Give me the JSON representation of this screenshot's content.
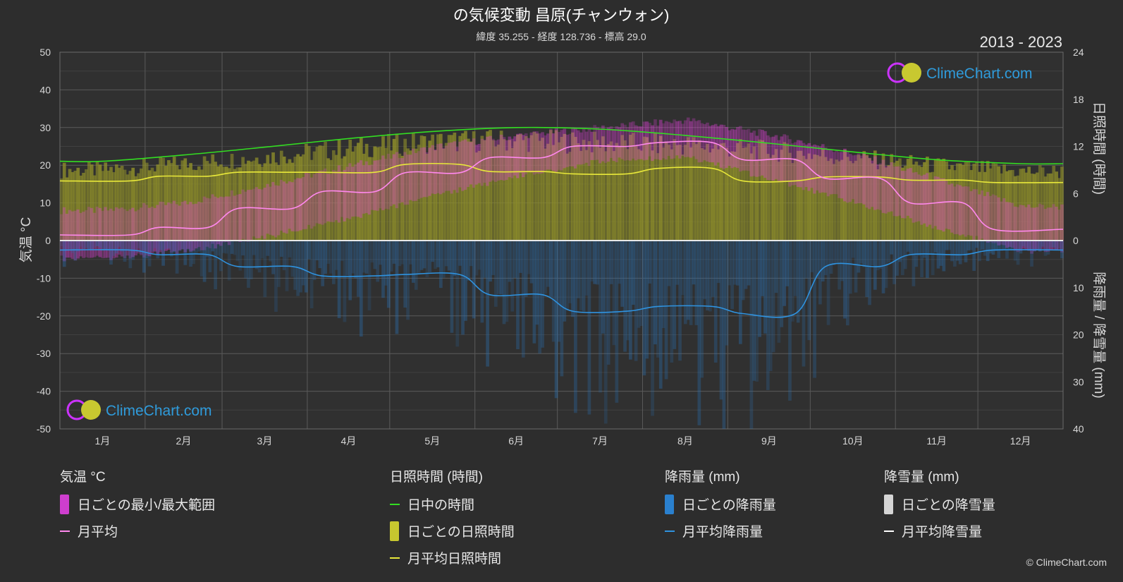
{
  "header": {
    "title": "の気候変動 昌原(チャンウォン)",
    "subtitle": "緯度 35.255 - 経度 128.736 - 標高 29.0",
    "years": "2013 - 2023"
  },
  "brand": {
    "logo_text": "ClimeChart.com",
    "copyright": "© ClimeChart.com"
  },
  "colors": {
    "background": "#2d2d2d",
    "daylight": "#33dd22",
    "sunshine_line": "#e8e83a",
    "sunshine_fill": "#9a9a2c",
    "temp_range": "#dd22cc",
    "temp_avg": "#ff88ee",
    "rain": "#2a7fc8",
    "rain_line": "#2f93e0",
    "snow": "#ffffff"
  },
  "legend": {
    "groups": [
      {
        "header": "気温 °C",
        "items": [
          {
            "label": "日ごとの最小/最大範囲",
            "kind": "swatch",
            "color": "#e040e0"
          },
          {
            "label": "月平均",
            "kind": "line",
            "color": "#ff88ee"
          }
        ]
      },
      {
        "header": "日照時間 (時間)",
        "items": [
          {
            "label": "日中の時間",
            "kind": "line",
            "color": "#33dd22"
          },
          {
            "label": "日ごとの日照時間",
            "kind": "swatch",
            "color": "#d8d830"
          },
          {
            "label": "月平均日照時間",
            "kind": "line",
            "color": "#e8e83a"
          }
        ]
      },
      {
        "header": "降雨量 (mm)",
        "items": [
          {
            "label": "日ごとの降雨量",
            "kind": "swatch",
            "color": "#2a8ae0"
          },
          {
            "label": "月平均降雨量",
            "kind": "line",
            "color": "#2f93e0"
          }
        ]
      },
      {
        "header": "降雪量 (mm)",
        "items": [
          {
            "label": "日ごとの降雪量",
            "kind": "swatch",
            "color": "#e8e8e8"
          },
          {
            "label": "月平均降雪量",
            "kind": "line",
            "color": "#ffffff"
          }
        ]
      }
    ]
  },
  "chart_data": {
    "type": "line",
    "title": "の気候変動 昌原(チャンウォン)",
    "categories": [
      "1月",
      "2月",
      "3月",
      "4月",
      "5月",
      "6月",
      "7月",
      "8月",
      "9月",
      "10月",
      "11月",
      "12月"
    ],
    "axes": {
      "left": {
        "label": "気温 °C",
        "range": [
          -50,
          50
        ],
        "ticks": [
          50,
          40,
          30,
          20,
          10,
          0,
          -10,
          -20,
          -30,
          -40,
          -50
        ]
      },
      "right_top": {
        "label": "日照時間 (時間)",
        "range": [
          0,
          24
        ],
        "ticks": [
          24,
          18,
          12,
          6,
          0
        ]
      },
      "right_bottom": {
        "label": "降雨量 / 降雪量 (mm)",
        "range": [
          0,
          40
        ],
        "ticks": [
          10,
          20,
          30,
          40
        ]
      }
    },
    "grid": true,
    "series": [
      {
        "name": "日中の時間",
        "axis": "right_top",
        "color": "#33dd22",
        "values": [
          10.1,
          10.9,
          11.9,
          13.0,
          13.9,
          14.4,
          14.2,
          13.4,
          12.4,
          11.3,
          10.3,
          9.8
        ]
      },
      {
        "name": "月平均日照時間",
        "axis": "right_top",
        "color": "#e8e83a",
        "values": [
          7.6,
          8.2,
          8.7,
          8.7,
          9.7,
          8.8,
          8.5,
          9.2,
          7.6,
          8.1,
          7.7,
          7.4
        ]
      },
      {
        "name": "日ごとの日照時間",
        "axis": "right_top",
        "color": "#9a9a2c",
        "values": [
          9.0,
          9.8,
          10.7,
          11.8,
          12.6,
          12.8,
          12.4,
          12.2,
          11.4,
          10.5,
          9.5,
          8.8
        ]
      },
      {
        "name": "月平均",
        "axis": "left",
        "color": "#ff88ee",
        "values": [
          1.5,
          3.5,
          8.5,
          13.0,
          18.0,
          22.0,
          25.0,
          26.0,
          21.5,
          16.5,
          10.0,
          3.0
        ]
      },
      {
        "name": "日ごとの最小/最大範囲",
        "axis": "left",
        "color": "#dd22cc",
        "min": [
          -4,
          -2,
          2,
          7,
          13,
          18,
          22,
          23,
          17,
          11,
          4,
          -2
        ],
        "max": [
          7,
          9,
          14,
          19,
          24,
          27,
          29,
          31,
          27,
          22,
          15,
          8
        ]
      },
      {
        "name": "月平均降雨量",
        "axis": "right_bottom",
        "color": "#2f93e0",
        "values": [
          2.0,
          3.0,
          5.5,
          7.5,
          7.2,
          11.5,
          15.0,
          14.0,
          15.5,
          5.5,
          3.0,
          2.0
        ]
      }
    ]
  }
}
